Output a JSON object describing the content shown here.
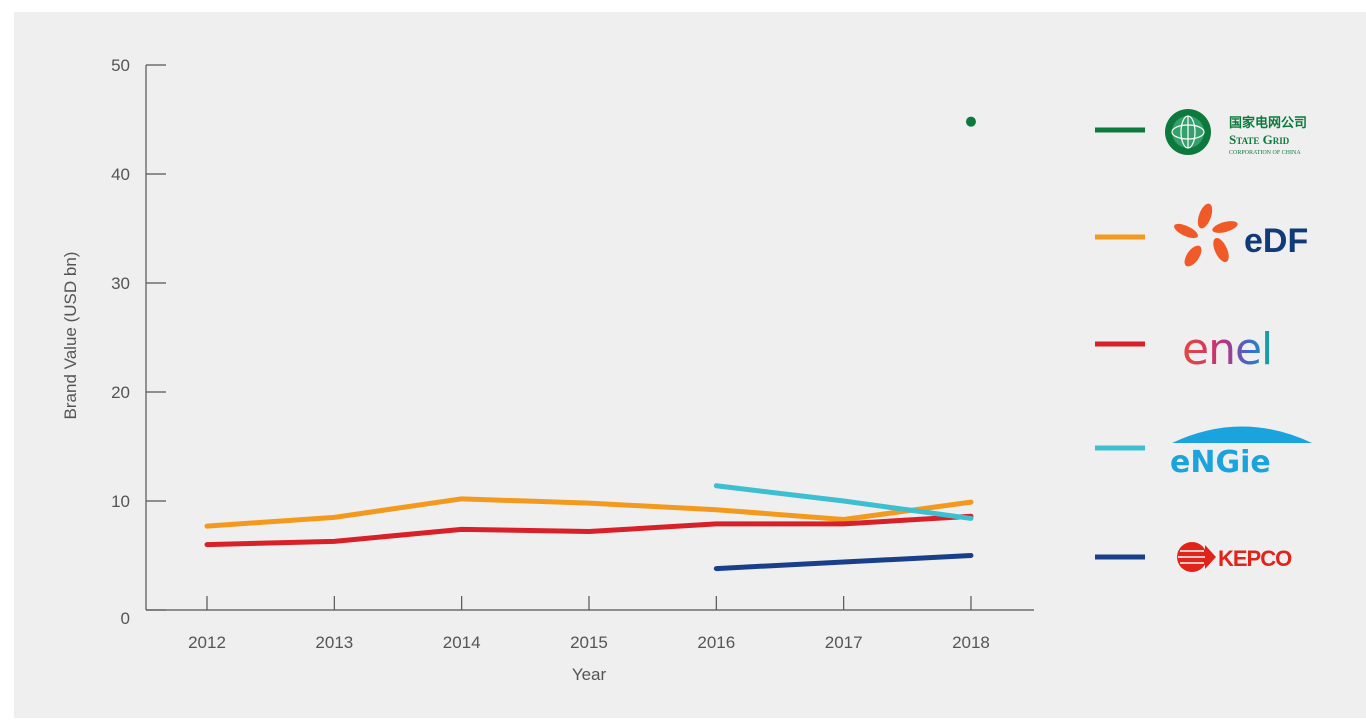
{
  "chart_data": {
    "type": "line",
    "xlabel": "Year",
    "ylabel": "Brand Value (USD bn)",
    "ylim": [
      0,
      50
    ],
    "yticks": [
      0,
      10,
      20,
      30,
      40,
      50
    ],
    "x": [
      "2012",
      "2013",
      "2014",
      "2015",
      "2016",
      "2017",
      "2018"
    ],
    "legend_position": "right",
    "series": [
      {
        "name": "State Grid Corporation of China",
        "color": "#0b7a3c",
        "marker_only": true,
        "values": [
          null,
          null,
          null,
          null,
          null,
          null,
          44.8
        ]
      },
      {
        "name": "EDF",
        "color": "#f39a1e",
        "values": [
          7.7,
          8.5,
          10.2,
          9.8,
          9.2,
          8.3,
          9.9
        ]
      },
      {
        "name": "Enel",
        "color": "#d72027",
        "values": [
          6.0,
          6.3,
          7.4,
          7.2,
          7.9,
          7.9,
          8.6
        ]
      },
      {
        "name": "ENGIE",
        "color": "#3cbfd1",
        "values": [
          null,
          null,
          null,
          null,
          11.4,
          10.0,
          8.4
        ]
      },
      {
        "name": "KEPCO",
        "color": "#1a3f8a",
        "values": [
          null,
          null,
          null,
          null,
          3.8,
          4.4,
          5.0
        ]
      }
    ]
  },
  "legend": {
    "state_grid": {
      "cn": "国家电网公司",
      "line1": "State Grid",
      "line2": "CORPORATION OF CHINA",
      "icon": "globe-icon"
    },
    "edf": {
      "text": "eDF",
      "icon": "edf-flower-icon"
    },
    "enel": {
      "text": "enel"
    },
    "engie": {
      "text": "eNGie",
      "icon": "engie-arc-icon"
    },
    "kepco": {
      "text": "KEPCO",
      "icon": "kepco-ball-icon"
    }
  }
}
